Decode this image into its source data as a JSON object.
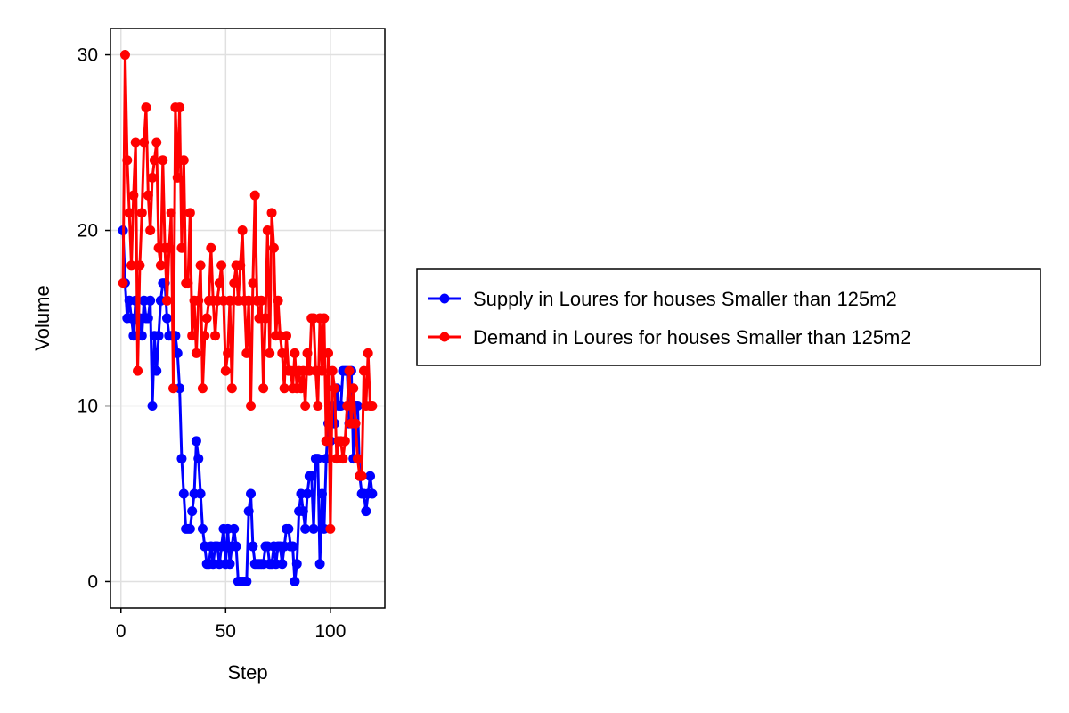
{
  "chart_data": {
    "type": "line",
    "xlabel": "Step",
    "ylabel": "Volume",
    "xlim": [
      -5,
      126
    ],
    "ylim": [
      -1.5,
      31.5
    ],
    "xticks": [
      0,
      50,
      100
    ],
    "yticks": [
      0,
      10,
      20,
      30
    ],
    "x_tick_labels": [
      "0",
      "50",
      "100"
    ],
    "y_tick_labels": [
      "0",
      "10",
      "20",
      "30"
    ],
    "grid": true,
    "legend_position": "right",
    "series": [
      {
        "name": "Supply in Loures for houses Smaller than 125m2",
        "color": "#0000ff",
        "x": [
          1,
          2,
          3,
          4,
          5,
          6,
          7,
          8,
          9,
          10,
          11,
          12,
          13,
          14,
          15,
          16,
          17,
          18,
          19,
          20,
          21,
          22,
          23,
          24,
          25,
          26,
          27,
          28,
          29,
          30,
          31,
          32,
          33,
          34,
          35,
          36,
          37,
          38,
          39,
          40,
          41,
          42,
          43,
          44,
          45,
          46,
          47,
          48,
          49,
          50,
          51,
          52,
          53,
          54,
          55,
          56,
          57,
          58,
          59,
          60,
          61,
          62,
          63,
          64,
          65,
          66,
          67,
          68,
          69,
          70,
          71,
          72,
          73,
          74,
          75,
          76,
          77,
          78,
          79,
          80,
          81,
          82,
          83,
          84,
          85,
          86,
          87,
          88,
          89,
          90,
          91,
          92,
          93,
          94,
          95,
          96,
          97,
          98,
          99,
          100,
          101,
          102,
          103,
          104,
          105,
          106,
          107,
          108,
          109,
          110,
          111,
          112,
          113,
          114,
          115,
          116,
          117,
          118,
          119,
          120
        ],
        "values": [
          20,
          17,
          15,
          16,
          15,
          14,
          16,
          14,
          15,
          14,
          16,
          15,
          15,
          16,
          10,
          14,
          12,
          14,
          16,
          17,
          17,
          15,
          14,
          14,
          14,
          14,
          13,
          11,
          7,
          5,
          3,
          3,
          3,
          4,
          5,
          8,
          7,
          5,
          3,
          2,
          1,
          1,
          2,
          1,
          2,
          2,
          1,
          2,
          3,
          1,
          3,
          1,
          2,
          3,
          2,
          0,
          0,
          0,
          0,
          0,
          4,
          5,
          2,
          1,
          1,
          1,
          1,
          1,
          2,
          2,
          1,
          1,
          2,
          1,
          2,
          2,
          1,
          2,
          3,
          3,
          2,
          2,
          0,
          1,
          4,
          5,
          4,
          3,
          5,
          6,
          6,
          3,
          7,
          7,
          1,
          5,
          3,
          7,
          9,
          8,
          10,
          9,
          11,
          10,
          10,
          12,
          12,
          12,
          9,
          12,
          7,
          10,
          10,
          6,
          5,
          5,
          4,
          5,
          6,
          5
        ]
      },
      {
        "name": "Demand in Loures for houses Smaller than 125m2",
        "color": "#ff0000",
        "x": [
          1,
          2,
          3,
          4,
          5,
          6,
          7,
          8,
          9,
          10,
          11,
          12,
          13,
          14,
          15,
          16,
          17,
          18,
          19,
          20,
          21,
          22,
          23,
          24,
          25,
          26,
          27,
          28,
          29,
          30,
          31,
          32,
          33,
          34,
          35,
          36,
          37,
          38,
          39,
          40,
          41,
          42,
          43,
          44,
          45,
          46,
          47,
          48,
          49,
          50,
          51,
          52,
          53,
          54,
          55,
          56,
          57,
          58,
          59,
          60,
          61,
          62,
          63,
          64,
          65,
          66,
          67,
          68,
          69,
          70,
          71,
          72,
          73,
          74,
          75,
          76,
          77,
          78,
          79,
          80,
          81,
          82,
          83,
          84,
          85,
          86,
          87,
          88,
          89,
          90,
          91,
          92,
          93,
          94,
          95,
          96,
          97,
          98,
          99,
          100,
          101,
          102,
          103,
          104,
          105,
          106,
          107,
          108,
          109,
          110,
          111,
          112,
          113,
          114,
          115,
          116,
          117,
          118,
          119,
          120
        ],
        "values": [
          17,
          30,
          24,
          21,
          18,
          22,
          25,
          12,
          18,
          21,
          25,
          27,
          22,
          20,
          23,
          24,
          25,
          19,
          18,
          24,
          19,
          16,
          19,
          21,
          11,
          27,
          23,
          27,
          19,
          24,
          17,
          17,
          21,
          14,
          16,
          13,
          16,
          18,
          11,
          14,
          15,
          16,
          19,
          16,
          14,
          16,
          17,
          18,
          16,
          12,
          13,
          16,
          11,
          17,
          18,
          16,
          18,
          20,
          16,
          13,
          16,
          10,
          17,
          22,
          16,
          15,
          16,
          11,
          15,
          20,
          13,
          21,
          19,
          14,
          16,
          14,
          13,
          11,
          14,
          12,
          12,
          11,
          13,
          11,
          12,
          11,
          12,
          10,
          13,
          12,
          15,
          15,
          12,
          10,
          15,
          12,
          15,
          8,
          13,
          3,
          12,
          11,
          7,
          8,
          8,
          7,
          8,
          10,
          12,
          9,
          11,
          9,
          7,
          6,
          6,
          12,
          10,
          13,
          10,
          10
        ]
      }
    ]
  }
}
